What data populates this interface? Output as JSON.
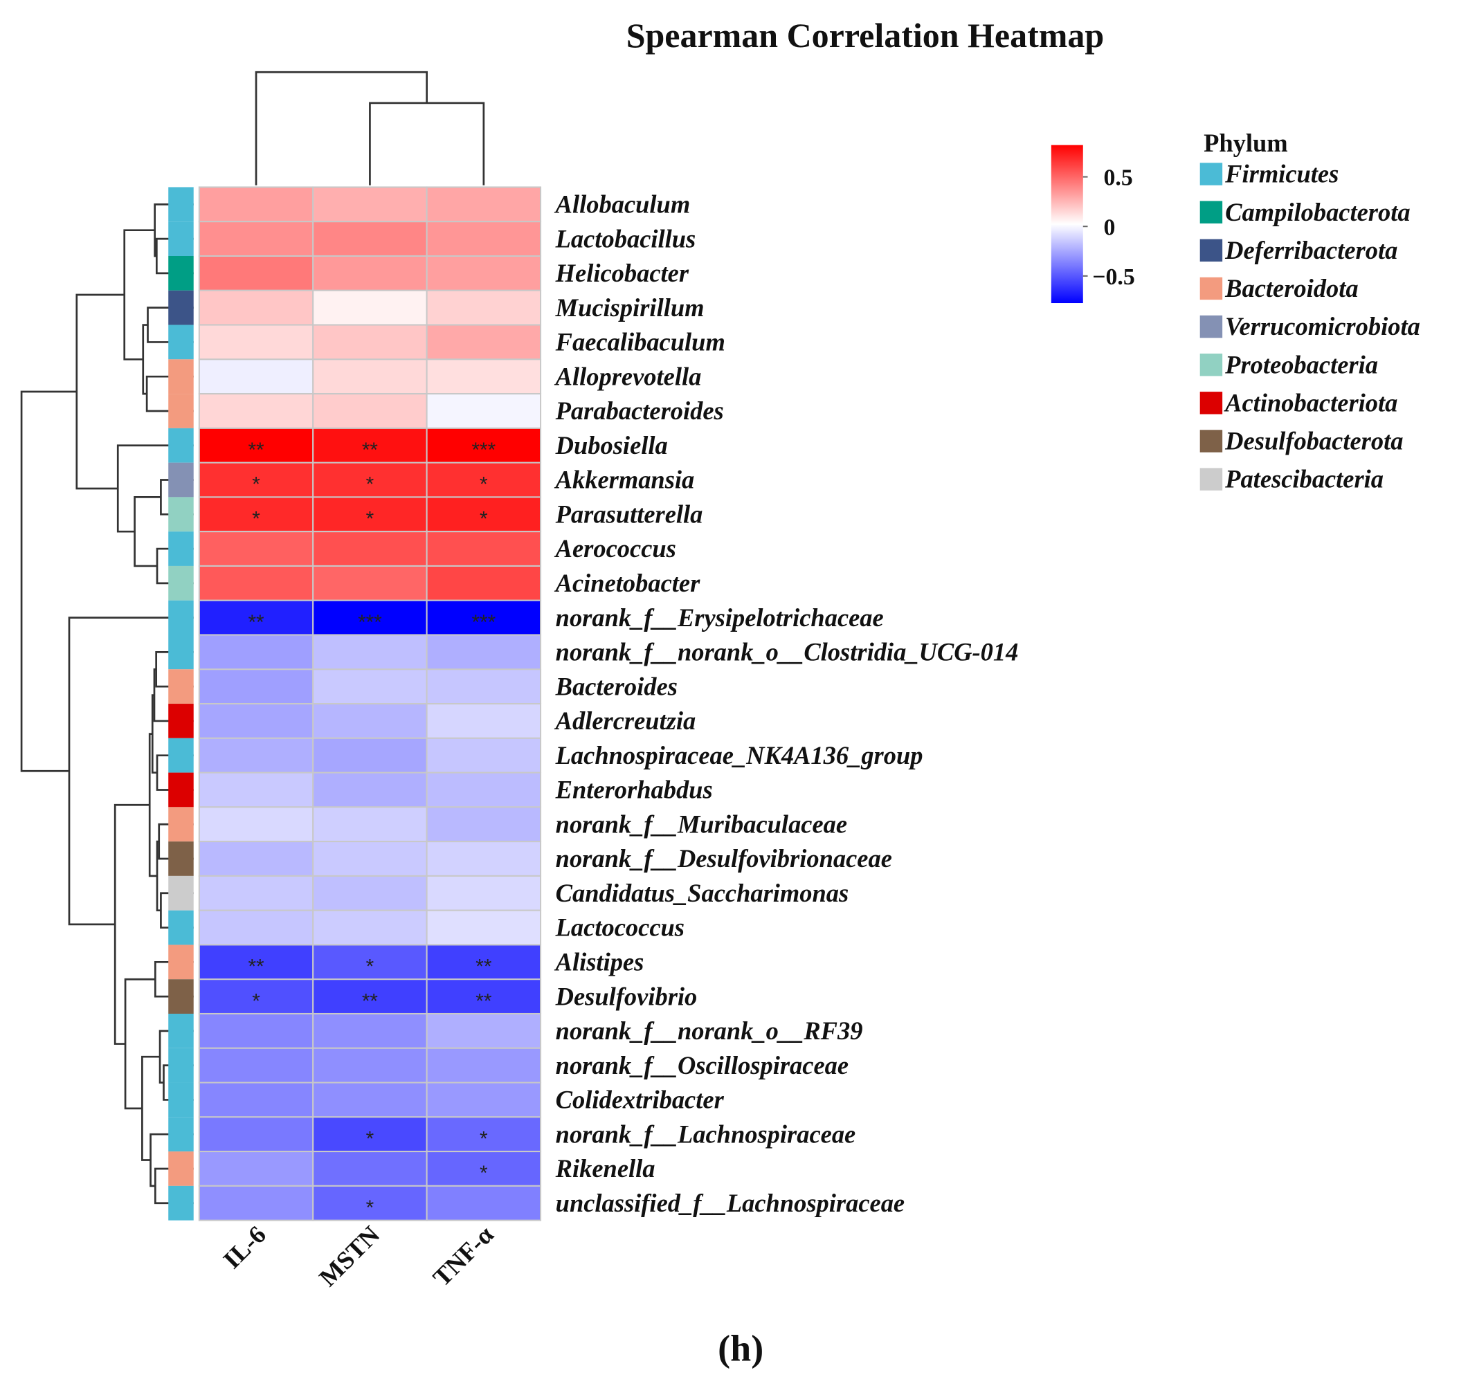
{
  "chart_data": {
    "type": "heatmap",
    "title": "Spearman Correlation Heatmap",
    "panel_label": "(h)",
    "columns": [
      "IL-6",
      "MSTN",
      "TNF-α"
    ],
    "value_range": [
      -0.8,
      0.8
    ],
    "colorbar": {
      "ticks": [
        {
          "value": 0.5,
          "label": "0.5"
        },
        {
          "value": 0,
          "label": "0"
        },
        {
          "value": -0.5,
          "label": "−0.5"
        }
      ],
      "low_color": "#0000ff",
      "mid_color": "#ffffff",
      "high_color": "#ff0000"
    },
    "legend": {
      "title": "Phylum",
      "placement": "right",
      "items": [
        {
          "name": "Firmicutes",
          "color": "#4bbbd6"
        },
        {
          "name": "Campilobacterota",
          "color": "#009e85"
        },
        {
          "name": "Deferribacterota",
          "color": "#3c5488"
        },
        {
          "name": "Bacteroidota",
          "color": "#f39b7f"
        },
        {
          "name": "Verrucomicrobiota",
          "color": "#8491b4"
        },
        {
          "name": "Proteobacteria",
          "color": "#91d1c2"
        },
        {
          "name": "Actinobacteriota",
          "color": "#dc0000"
        },
        {
          "name": "Desulfobacterota",
          "color": "#7e6148"
        },
        {
          "name": "Patescibacteria",
          "color": "#cccccc"
        }
      ]
    },
    "rows": [
      {
        "name": "Allobaculum",
        "phylum": 0,
        "values": [
          0.3,
          0.25,
          0.28
        ],
        "sig": [
          "",
          "",
          ""
        ]
      },
      {
        "name": "Lactobacillus",
        "phylum": 0,
        "values": [
          0.35,
          0.38,
          0.33
        ],
        "sig": [
          "",
          "",
          ""
        ]
      },
      {
        "name": "Helicobacter",
        "phylum": 1,
        "values": [
          0.42,
          0.32,
          0.3
        ],
        "sig": [
          "",
          "",
          ""
        ]
      },
      {
        "name": "Mucispirillum",
        "phylum": 2,
        "values": [
          0.18,
          0.04,
          0.14
        ],
        "sig": [
          "",
          "",
          ""
        ]
      },
      {
        "name": "Faecalibaculum",
        "phylum": 0,
        "values": [
          0.12,
          0.18,
          0.27
        ],
        "sig": [
          "",
          "",
          ""
        ]
      },
      {
        "name": "Alloprevotella",
        "phylum": 3,
        "values": [
          -0.05,
          0.12,
          0.1
        ],
        "sig": [
          "",
          "",
          ""
        ]
      },
      {
        "name": "Parabacteroides",
        "phylum": 3,
        "values": [
          0.13,
          0.16,
          -0.03
        ],
        "sig": [
          "",
          "",
          ""
        ]
      },
      {
        "name": "Dubosiella",
        "phylum": 0,
        "values": [
          0.8,
          0.75,
          0.8
        ],
        "sig": [
          "**",
          "**",
          "***"
        ]
      },
      {
        "name": "Akkermansia",
        "phylum": 4,
        "values": [
          0.65,
          0.65,
          0.65
        ],
        "sig": [
          "*",
          "*",
          "*"
        ]
      },
      {
        "name": "Parasutterella",
        "phylum": 5,
        "values": [
          0.67,
          0.68,
          0.7
        ],
        "sig": [
          "*",
          "*",
          "*"
        ]
      },
      {
        "name": "Aerococcus",
        "phylum": 0,
        "values": [
          0.5,
          0.55,
          0.55
        ],
        "sig": [
          "",
          "",
          ""
        ]
      },
      {
        "name": "Acinetobacter",
        "phylum": 5,
        "values": [
          0.52,
          0.48,
          0.58
        ],
        "sig": [
          "",
          "",
          ""
        ]
      },
      {
        "name": "norank_f__Erysipelotrichaceae",
        "phylum": 0,
        "values": [
          -0.7,
          -0.8,
          -0.8
        ],
        "sig": [
          "**",
          "***",
          "***"
        ]
      },
      {
        "name": "norank_f__norank_o__Clostridia_UCG-014",
        "phylum": 0,
        "values": [
          -0.3,
          -0.2,
          -0.25
        ],
        "sig": [
          "",
          "",
          ""
        ]
      },
      {
        "name": "Bacteroides",
        "phylum": 3,
        "values": [
          -0.3,
          -0.17,
          -0.18
        ],
        "sig": [
          "",
          "",
          ""
        ]
      },
      {
        "name": "Adlercreutzia",
        "phylum": 6,
        "values": [
          -0.28,
          -0.23,
          -0.13
        ],
        "sig": [
          "",
          "",
          ""
        ]
      },
      {
        "name": "Lachnospiraceae_NK4A136_group",
        "phylum": 0,
        "values": [
          -0.25,
          -0.28,
          -0.18
        ],
        "sig": [
          "",
          "",
          ""
        ]
      },
      {
        "name": "Enterorhabdus",
        "phylum": 6,
        "values": [
          -0.17,
          -0.25,
          -0.21
        ],
        "sig": [
          "",
          "",
          ""
        ]
      },
      {
        "name": "norank_f__Muribaculaceae",
        "phylum": 3,
        "values": [
          -0.12,
          -0.15,
          -0.22
        ],
        "sig": [
          "",
          "",
          ""
        ]
      },
      {
        "name": "norank_f__Desulfovibrionaceae",
        "phylum": 7,
        "values": [
          -0.22,
          -0.17,
          -0.14
        ],
        "sig": [
          "",
          "",
          ""
        ]
      },
      {
        "name": "Candidatus_Saccharimonas",
        "phylum": 8,
        "values": [
          -0.17,
          -0.2,
          -0.12
        ],
        "sig": [
          "",
          "",
          ""
        ]
      },
      {
        "name": "Lactococcus",
        "phylum": 0,
        "values": [
          -0.18,
          -0.16,
          -0.1
        ],
        "sig": [
          "",
          "",
          ""
        ]
      },
      {
        "name": "Alistipes",
        "phylum": 3,
        "values": [
          -0.6,
          -0.52,
          -0.6
        ],
        "sig": [
          "**",
          "*",
          "**"
        ]
      },
      {
        "name": "Desulfovibrio",
        "phylum": 7,
        "values": [
          -0.55,
          -0.6,
          -0.6
        ],
        "sig": [
          "*",
          "**",
          "**"
        ]
      },
      {
        "name": "norank_f__norank_o__RF39",
        "phylum": 0,
        "values": [
          -0.38,
          -0.35,
          -0.25
        ],
        "sig": [
          "",
          "",
          ""
        ]
      },
      {
        "name": "norank_f__Oscillospiraceae",
        "phylum": 0,
        "values": [
          -0.38,
          -0.35,
          -0.32
        ],
        "sig": [
          "",
          "",
          ""
        ]
      },
      {
        "name": "Colidextribacter",
        "phylum": 0,
        "values": [
          -0.38,
          -0.35,
          -0.32
        ],
        "sig": [
          "",
          "",
          ""
        ]
      },
      {
        "name": "norank_f__Lachnospiraceae",
        "phylum": 0,
        "values": [
          -0.42,
          -0.57,
          -0.47
        ],
        "sig": [
          "",
          "*",
          "*"
        ]
      },
      {
        "name": "Rikenella",
        "phylum": 3,
        "values": [
          -0.32,
          -0.45,
          -0.48
        ],
        "sig": [
          "",
          "",
          "*"
        ]
      },
      {
        "name": "unclassified_f__Lachnospiraceae",
        "phylum": 0,
        "values": [
          -0.35,
          -0.48,
          -0.4
        ],
        "sig": [
          "",
          "*",
          ""
        ]
      }
    ]
  }
}
